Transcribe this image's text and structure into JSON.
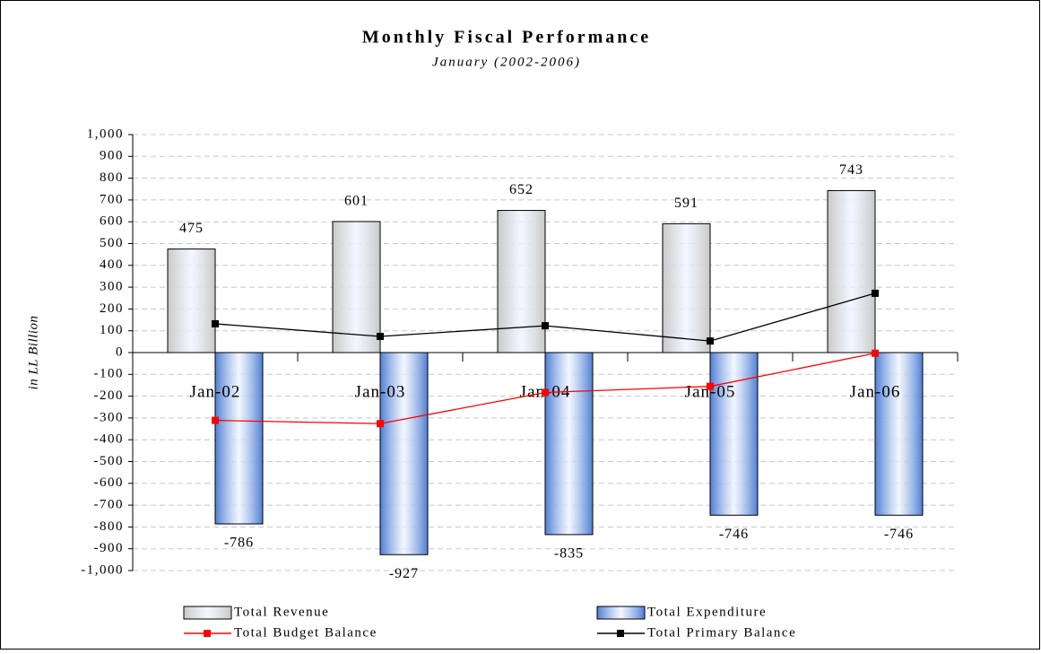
{
  "chart_data": {
    "type": "bar",
    "title": "Monthly Fiscal Performance",
    "subtitle": "January (2002-2006)",
    "y_label": "in LL Billion",
    "categories": [
      "Jan-02",
      "Jan-03",
      "Jan-04",
      "Jan-05",
      "Jan-06"
    ],
    "series": [
      {
        "name": "Total Revenue",
        "type": "bar",
        "color": "#c8c8c8",
        "values": [
          475,
          601,
          652,
          591,
          743
        ]
      },
      {
        "name": "Total Expenditure",
        "type": "bar",
        "color": "#4f7fd4",
        "values": [
          -786,
          -927,
          -835,
          -746,
          -746
        ]
      },
      {
        "name": "Total Budget Balance",
        "type": "line",
        "color": "#ff0000",
        "values": [
          -311,
          -326,
          -183,
          -155,
          -3
        ]
      },
      {
        "name": "Total Primary Balance",
        "type": "line",
        "color": "#000000",
        "values": [
          132,
          74,
          123,
          53,
          272
        ]
      }
    ],
    "ylim": [
      -1000,
      1000
    ],
    "yticks": [
      {
        "value": -1000,
        "label": "-1,000"
      },
      -900,
      -800,
      -700,
      -600,
      -500,
      -400,
      -300,
      -200,
      -100,
      0,
      100,
      200,
      300,
      400,
      500,
      600,
      700,
      800,
      900,
      {
        "value": 1000,
        "label": "1,000"
      }
    ],
    "grid": true,
    "legend": "bottom"
  }
}
